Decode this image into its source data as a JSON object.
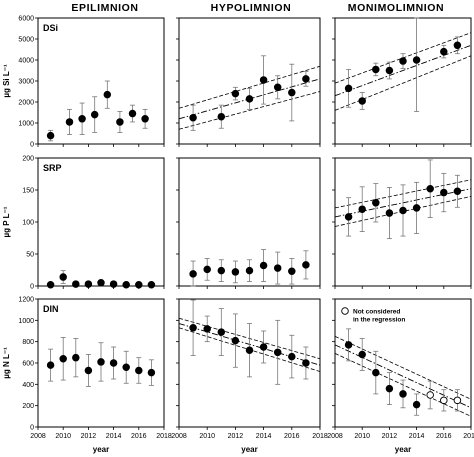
{
  "figure": {
    "column_titles": [
      "EPILIMNION",
      "HYPOLIMNION",
      "MONIMOLIMNION"
    ],
    "x_axis_label": "year",
    "x_ticks": [
      "2008",
      "2010",
      "2012",
      "2014",
      "2016",
      "2018"
    ],
    "legend_line1": "Not considered",
    "legend_line2": "in the regression"
  },
  "chart_data": [
    {
      "type": "scatter",
      "row": "DSi",
      "panel_label": "DSi",
      "ylabel": "µg Si L⁻¹",
      "ylim": [
        0,
        6000
      ],
      "yticks": [
        "0",
        "1000",
        "2000",
        "3000",
        "4000",
        "5000",
        "6000"
      ],
      "xlim": [
        2008,
        2018
      ],
      "panels": [
        {
          "column": "EPILIMNION",
          "regression": false,
          "points": [
            {
              "x": 2009,
              "y": 400,
              "err": 250
            },
            {
              "x": 2010.5,
              "y": 1050,
              "err": 600
            },
            {
              "x": 2011.5,
              "y": 1200,
              "err": 750
            },
            {
              "x": 2012.5,
              "y": 1400,
              "err": 850
            },
            {
              "x": 2013.5,
              "y": 2350,
              "err": 650
            },
            {
              "x": 2014.5,
              "y": 1050,
              "err": 500
            },
            {
              "x": 2015.5,
              "y": 1450,
              "err": 400
            },
            {
              "x": 2016.5,
              "y": 1200,
              "err": 450
            }
          ]
        },
        {
          "column": "HYPOLIMNION",
          "regression": true,
          "fit": [
            1200,
            3100
          ],
          "band_lower": [
            700,
            2500
          ],
          "band_upper": [
            1700,
            3700
          ],
          "points": [
            {
              "x": 2009,
              "y": 1250,
              "err": 600
            },
            {
              "x": 2011,
              "y": 1300,
              "err": 550
            },
            {
              "x": 2012,
              "y": 2400,
              "err": 300
            },
            {
              "x": 2013,
              "y": 2150,
              "err": 500
            },
            {
              "x": 2014,
              "y": 3050,
              "err": 1150
            },
            {
              "x": 2015,
              "y": 2700,
              "err": 550
            },
            {
              "x": 2016,
              "y": 2450,
              "err": 1350
            },
            {
              "x": 2017,
              "y": 3100,
              "err": 350
            }
          ]
        },
        {
          "column": "MONIMOLIMNION",
          "regression": true,
          "fit": [
            2300,
            4700
          ],
          "band_lower": [
            1600,
            4200
          ],
          "band_upper": [
            2900,
            5300
          ],
          "points": [
            {
              "x": 2009,
              "y": 2650,
              "err": 900
            },
            {
              "x": 2010,
              "y": 2050,
              "err": 400
            },
            {
              "x": 2011,
              "y": 3550,
              "err": 300
            },
            {
              "x": 2012,
              "y": 3500,
              "err": 400
            },
            {
              "x": 2013,
              "y": 3950,
              "err": 350
            },
            {
              "x": 2014,
              "y": 4000,
              "err": 2450
            },
            {
              "x": 2016,
              "y": 4400,
              "err": 300
            },
            {
              "x": 2017,
              "y": 4700,
              "err": 400
            }
          ]
        }
      ]
    },
    {
      "type": "scatter",
      "row": "SRP",
      "panel_label": "SRP",
      "ylabel": "µg P L⁻¹",
      "ylim": [
        0,
        200
      ],
      "yticks": [
        "0",
        "50",
        "100",
        "150",
        "200"
      ],
      "xlim": [
        2008,
        2018
      ],
      "panels": [
        {
          "column": "EPILIMNION",
          "regression": false,
          "points": [
            {
              "x": 2009,
              "y": 2,
              "err": 2
            },
            {
              "x": 2010,
              "y": 14,
              "err": 10
            },
            {
              "x": 2011,
              "y": 3,
              "err": 2
            },
            {
              "x": 2012,
              "y": 3,
              "err": 2
            },
            {
              "x": 2013,
              "y": 5,
              "err": 4
            },
            {
              "x": 2014,
              "y": 3,
              "err": 2
            },
            {
              "x": 2015,
              "y": 2,
              "err": 1
            },
            {
              "x": 2016,
              "y": 2,
              "err": 1
            },
            {
              "x": 2017,
              "y": 2,
              "err": 1
            }
          ]
        },
        {
          "column": "HYPOLIMNION",
          "regression": false,
          "points": [
            {
              "x": 2009,
              "y": 19,
              "err": 20
            },
            {
              "x": 2010,
              "y": 26,
              "err": 17
            },
            {
              "x": 2011,
              "y": 24,
              "err": 17
            },
            {
              "x": 2012,
              "y": 22,
              "err": 17
            },
            {
              "x": 2013,
              "y": 24,
              "err": 17
            },
            {
              "x": 2014,
              "y": 32,
              "err": 25
            },
            {
              "x": 2015,
              "y": 28,
              "err": 25
            },
            {
              "x": 2016,
              "y": 23,
              "err": 20
            },
            {
              "x": 2017,
              "y": 33,
              "err": 22
            }
          ]
        },
        {
          "column": "MONIMOLIMNION",
          "regression": true,
          "fit": [
            108,
            152
          ],
          "band_lower": [
            93,
            140
          ],
          "band_upper": [
            122,
            166
          ],
          "points": [
            {
              "x": 2009,
              "y": 108,
              "err": 30
            },
            {
              "x": 2010,
              "y": 120,
              "err": 35
            },
            {
              "x": 2011,
              "y": 130,
              "err": 30
            },
            {
              "x": 2012,
              "y": 114,
              "err": 40
            },
            {
              "x": 2013,
              "y": 118,
              "err": 40
            },
            {
              "x": 2014,
              "y": 122,
              "err": 40
            },
            {
              "x": 2015,
              "y": 152,
              "err": 45
            },
            {
              "x": 2016,
              "y": 146,
              "err": 30
            },
            {
              "x": 2017,
              "y": 148,
              "err": 25
            }
          ]
        }
      ]
    },
    {
      "type": "scatter",
      "row": "DIN",
      "panel_label": "DIN",
      "ylabel": "µg N L⁻¹",
      "ylim": [
        0,
        1200
      ],
      "yticks": [
        "0",
        "200",
        "400",
        "600",
        "800",
        "1000",
        "1200"
      ],
      "xlim": [
        2008,
        2018
      ],
      "panels": [
        {
          "column": "EPILIMNION",
          "regression": false,
          "points": [
            {
              "x": 2009,
              "y": 580,
              "err": 150
            },
            {
              "x": 2010,
              "y": 640,
              "err": 200
            },
            {
              "x": 2011,
              "y": 650,
              "err": 180
            },
            {
              "x": 2012,
              "y": 530,
              "err": 150
            },
            {
              "x": 2013,
              "y": 610,
              "err": 180
            },
            {
              "x": 2014,
              "y": 600,
              "err": 150
            },
            {
              "x": 2015,
              "y": 560,
              "err": 150
            },
            {
              "x": 2016,
              "y": 530,
              "err": 120
            },
            {
              "x": 2017,
              "y": 510,
              "err": 120
            }
          ]
        },
        {
          "column": "HYPOLIMNION",
          "regression": true,
          "fit": [
            970,
            580
          ],
          "band_lower": [
            930,
            520
          ],
          "band_upper": [
            1020,
            640
          ],
          "points": [
            {
              "x": 2009,
              "y": 930,
              "err": 260
            },
            {
              "x": 2010,
              "y": 920,
              "err": 120
            },
            {
              "x": 2011,
              "y": 890,
              "err": 220
            },
            {
              "x": 2012,
              "y": 810,
              "err": 250
            },
            {
              "x": 2013,
              "y": 720,
              "err": 250
            },
            {
              "x": 2014,
              "y": 750,
              "err": 150
            },
            {
              "x": 2015,
              "y": 700,
              "err": 300
            },
            {
              "x": 2016,
              "y": 660,
              "err": 200
            },
            {
              "x": 2017,
              "y": 600,
              "err": 150
            }
          ]
        },
        {
          "column": "MONIMOLIMNION",
          "regression": true,
          "fit": [
            770,
            180
          ],
          "band_lower": [
            690,
            100
          ],
          "band_upper": [
            850,
            260
          ],
          "points": [
            {
              "x": 2009,
              "y": 770,
              "err": 150,
              "excluded": false
            },
            {
              "x": 2010,
              "y": 680,
              "err": 150,
              "excluded": false
            },
            {
              "x": 2011,
              "y": 510,
              "err": 200,
              "excluded": false
            },
            {
              "x": 2012,
              "y": 360,
              "err": 150,
              "excluded": false
            },
            {
              "x": 2013,
              "y": 310,
              "err": 130,
              "excluded": false
            },
            {
              "x": 2014,
              "y": 210,
              "err": 100,
              "excluded": false
            },
            {
              "x": 2015,
              "y": 300,
              "err": 130,
              "excluded": true
            },
            {
              "x": 2016,
              "y": 250,
              "err": 100,
              "excluded": true
            },
            {
              "x": 2017,
              "y": 250,
              "err": 100,
              "excluded": true
            }
          ]
        }
      ]
    }
  ]
}
